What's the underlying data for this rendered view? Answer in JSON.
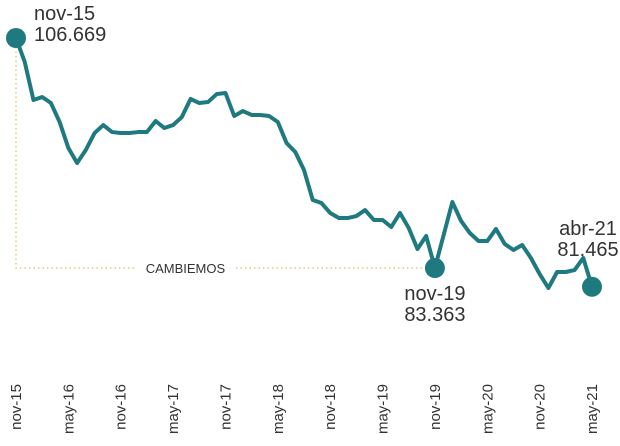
{
  "chart_data": {
    "type": "line",
    "categories": [
      "nov-15",
      null,
      null,
      null,
      null,
      null,
      "may-16",
      null,
      null,
      null,
      null,
      null,
      "nov-16",
      null,
      null,
      null,
      null,
      null,
      "may-17",
      null,
      null,
      null,
      null,
      null,
      "nov-17",
      null,
      null,
      null,
      null,
      null,
      "may-18",
      null,
      null,
      null,
      null,
      null,
      "nov-18",
      null,
      null,
      null,
      null,
      null,
      "may-19",
      null,
      null,
      null,
      null,
      null,
      "nov-19",
      null,
      null,
      null,
      null,
      null,
      "may-20",
      null,
      null,
      null,
      null,
      null,
      "nov-20",
      null,
      null,
      null,
      null,
      null,
      "may-21"
    ],
    "series": [
      {
        "color": "#1f7a80",
        "values": [
          106.669,
          104.24,
          100.39,
          100.69,
          100.08,
          98.16,
          95.52,
          94.0,
          95.32,
          97.04,
          97.85,
          97.14,
          97.04,
          97.04,
          97.14,
          97.14,
          98.26,
          97.55,
          97.85,
          98.66,
          100.49,
          100.08,
          100.18,
          100.99,
          101.1,
          98.77,
          99.27,
          98.87,
          98.87,
          98.77,
          98.16,
          96.03,
          95.12,
          93.29,
          90.26,
          89.95,
          88.94,
          88.43,
          88.43,
          88.63,
          89.24,
          88.23,
          88.23,
          87.52,
          88.94,
          87.42,
          85.29,
          86.61,
          83.363,
          86.71,
          90.05,
          88.13,
          86.91,
          86.1,
          86.1,
          87.32,
          85.8,
          85.19,
          85.7,
          84.38,
          82.76,
          81.34,
          82.96,
          82.96,
          83.16,
          84.38,
          81.465
        ]
      }
    ],
    "annotations": [
      {
        "label": "nov-15",
        "value": 106.669
      },
      {
        "label": "nov-19",
        "value": 83.363
      },
      {
        "label": "abr-21",
        "value": 81.465
      }
    ],
    "period_label": "CAMBIEMOS",
    "period_color": "#e8c77a"
  }
}
